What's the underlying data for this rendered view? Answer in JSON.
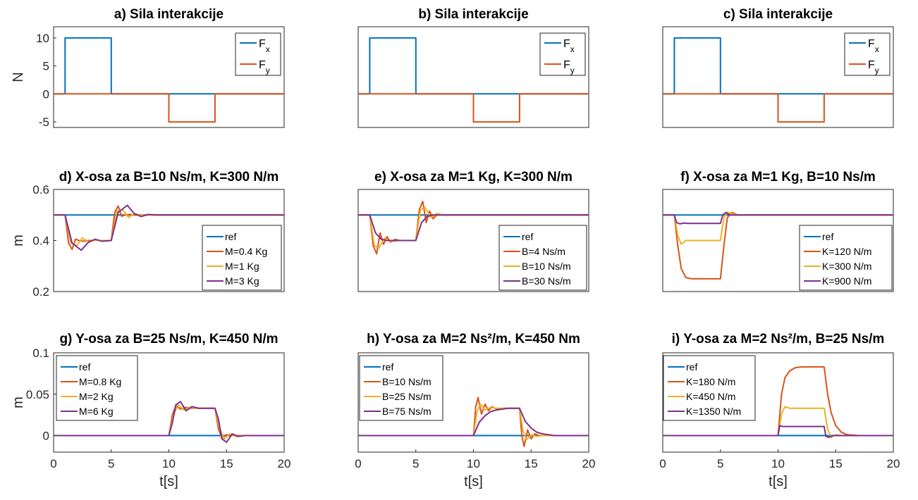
{
  "figure": {
    "xlabel": "t[s]",
    "colors": {
      "ref": "#0072BD",
      "s1": "#D95319",
      "s2": "#EDB120",
      "s3": "#7E2F8E",
      "axis": "#262626"
    }
  },
  "chart_data": [
    {
      "id": "a",
      "type": "line",
      "title": "a) Sila interakcije",
      "ylabel": "N",
      "xlim": [
        0,
        20
      ],
      "ylim": [
        -6,
        12
      ],
      "yticks": [
        -5,
        0,
        5,
        10
      ],
      "xticks": [],
      "legend_position": "top-right",
      "series": [
        {
          "name": "Fx",
          "color": "#0072BD",
          "x": [
            0,
            1,
            1,
            5,
            5,
            10,
            10,
            14,
            14,
            20
          ],
          "y": [
            0,
            0,
            10,
            10,
            0,
            0,
            0,
            0,
            0,
            0
          ]
        },
        {
          "name": "Fy",
          "color": "#D95319",
          "x": [
            0,
            10,
            10,
            14,
            14,
            20
          ],
          "y": [
            0,
            0,
            -5,
            -5,
            0,
            0
          ]
        }
      ]
    },
    {
      "id": "b",
      "type": "line",
      "title": "b) Sila interakcije",
      "ylabel": "",
      "xlim": [
        0,
        20
      ],
      "ylim": [
        -6,
        12
      ],
      "yticks": [],
      "xticks": [],
      "legend_position": "top-right",
      "series": [
        {
          "name": "Fx",
          "color": "#0072BD",
          "x": [
            0,
            1,
            1,
            5,
            5,
            10,
            10,
            14,
            14,
            20
          ],
          "y": [
            0,
            0,
            10,
            10,
            0,
            0,
            0,
            0,
            0,
            0
          ]
        },
        {
          "name": "Fy",
          "color": "#D95319",
          "x": [
            0,
            10,
            10,
            14,
            14,
            20
          ],
          "y": [
            0,
            0,
            -5,
            -5,
            0,
            0
          ]
        }
      ]
    },
    {
      "id": "c",
      "type": "line",
      "title": "c) Sila interakcije",
      "ylabel": "",
      "xlim": [
        0,
        20
      ],
      "ylim": [
        -6,
        12
      ],
      "yticks": [],
      "xticks": [],
      "legend_position": "top-right",
      "series": [
        {
          "name": "Fx",
          "color": "#0072BD",
          "x": [
            0,
            1,
            1,
            5,
            5,
            10,
            10,
            14,
            14,
            20
          ],
          "y": [
            0,
            0,
            10,
            10,
            0,
            0,
            0,
            0,
            0,
            0
          ]
        },
        {
          "name": "Fy",
          "color": "#D95319",
          "x": [
            0,
            10,
            10,
            14,
            14,
            20
          ],
          "y": [
            0,
            0,
            -5,
            -5,
            0,
            0
          ]
        }
      ]
    },
    {
      "id": "d",
      "type": "line",
      "title": "d) X-osa za B=10 Ns/m, K=300 N/m",
      "ylabel": "m",
      "xlim": [
        0,
        20
      ],
      "ylim": [
        0.2,
        0.6
      ],
      "yticks": [
        0.2,
        0.4,
        0.6
      ],
      "xticks": [],
      "legend_position": "bottom-right",
      "series": [
        {
          "name": "ref",
          "color": "#0072BD",
          "x": [
            0,
            20
          ],
          "y": [
            0.5,
            0.5
          ]
        },
        {
          "name": "M=0.4 Kg",
          "color": "#D95319",
          "x": [
            0,
            1,
            1.3,
            1.6,
            1.9,
            2.2,
            2.6,
            3,
            5,
            5.3,
            5.6,
            5.9,
            6.2,
            6.6,
            7,
            20
          ],
          "y": [
            0.5,
            0.5,
            0.39,
            0.365,
            0.405,
            0.4,
            0.397,
            0.4,
            0.4,
            0.51,
            0.535,
            0.495,
            0.5,
            0.502,
            0.5,
            0.5
          ]
        },
        {
          "name": "M=1 Kg",
          "color": "#EDB120",
          "x": [
            0,
            1,
            1.5,
            2,
            2.5,
            3,
            3.5,
            5,
            5.5,
            6,
            6.5,
            7,
            7.5,
            20
          ],
          "y": [
            0.5,
            0.5,
            0.39,
            0.38,
            0.41,
            0.395,
            0.4,
            0.4,
            0.515,
            0.52,
            0.49,
            0.505,
            0.5,
            0.5
          ]
        },
        {
          "name": "M=3 Kg",
          "color": "#7E2F8E",
          "x": [
            0,
            1,
            1.6,
            2.4,
            3,
            3.6,
            4.2,
            5,
            5.6,
            6.4,
            7,
            7.6,
            8.2,
            9,
            20
          ],
          "y": [
            0.5,
            0.5,
            0.39,
            0.362,
            0.392,
            0.405,
            0.397,
            0.4,
            0.51,
            0.538,
            0.505,
            0.494,
            0.502,
            0.5,
            0.5
          ]
        }
      ]
    },
    {
      "id": "e",
      "type": "line",
      "title": "e) X-osa za M=1 Kg, K=300 N/m",
      "ylabel": "",
      "xlim": [
        0,
        20
      ],
      "ylim": [
        0.2,
        0.6
      ],
      "yticks": [],
      "xticks": [],
      "legend_position": "bottom-right",
      "series": [
        {
          "name": "ref",
          "color": "#0072BD",
          "x": [
            0,
            20
          ],
          "y": [
            0.5,
            0.5
          ]
        },
        {
          "name": "B=4 Ns/m",
          "color": "#D95319",
          "x": [
            0,
            1,
            1.3,
            1.6,
            1.9,
            2.2,
            2.5,
            2.8,
            3.2,
            3.6,
            5,
            5.3,
            5.6,
            5.9,
            6.2,
            6.5,
            6.9,
            7.3,
            20
          ],
          "y": [
            0.5,
            0.5,
            0.38,
            0.348,
            0.43,
            0.385,
            0.415,
            0.393,
            0.404,
            0.4,
            0.4,
            0.52,
            0.553,
            0.47,
            0.515,
            0.485,
            0.505,
            0.5,
            0.5
          ]
        },
        {
          "name": "B=10 Ns/m",
          "color": "#EDB120",
          "x": [
            0,
            1,
            1.4,
            1.8,
            2.3,
            2.8,
            3.4,
            5,
            5.4,
            5.8,
            6.3,
            6.8,
            7.4,
            20
          ],
          "y": [
            0.5,
            0.5,
            0.38,
            0.37,
            0.41,
            0.395,
            0.4,
            0.4,
            0.52,
            0.53,
            0.49,
            0.505,
            0.5,
            0.5
          ]
        },
        {
          "name": "B=30 Ns/m",
          "color": "#7E2F8E",
          "x": [
            0,
            1,
            1.5,
            2,
            2.5,
            3,
            5,
            5.5,
            6,
            6.5,
            7,
            20
          ],
          "y": [
            0.5,
            0.5,
            0.43,
            0.405,
            0.4,
            0.4,
            0.4,
            0.47,
            0.495,
            0.5,
            0.5,
            0.5
          ]
        }
      ]
    },
    {
      "id": "f",
      "type": "line",
      "title": "f) X-osa za M=1 Kg, B=10 Ns/m",
      "ylabel": "",
      "xlim": [
        0,
        20
      ],
      "ylim": [
        0.2,
        0.6
      ],
      "yticks": [],
      "xticks": [],
      "legend_position": "bottom-right",
      "series": [
        {
          "name": "ref",
          "color": "#0072BD",
          "x": [
            0,
            20
          ],
          "y": [
            0.5,
            0.5
          ]
        },
        {
          "name": "K=120 N/m",
          "color": "#D95319",
          "x": [
            0,
            1,
            1.3,
            1.6,
            2,
            2.5,
            3,
            5,
            5.3,
            5.6,
            6,
            6.5,
            20
          ],
          "y": [
            0.5,
            0.5,
            0.38,
            0.29,
            0.255,
            0.25,
            0.25,
            0.25,
            0.38,
            0.49,
            0.51,
            0.5,
            0.5
          ]
        },
        {
          "name": "K=300 N/m",
          "color": "#EDB120",
          "x": [
            0,
            1,
            1.3,
            1.6,
            2,
            2.5,
            5,
            5.3,
            5.6,
            6,
            6.5,
            20
          ],
          "y": [
            0.5,
            0.5,
            0.42,
            0.385,
            0.4,
            0.4,
            0.4,
            0.49,
            0.51,
            0.505,
            0.5,
            0.5
          ]
        },
        {
          "name": "K=900 N/m",
          "color": "#7E2F8E",
          "x": [
            0,
            1,
            1.2,
            1.5,
            1.8,
            2.2,
            5,
            5.2,
            5.5,
            5.8,
            6.2,
            20
          ],
          "y": [
            0.5,
            0.5,
            0.47,
            0.465,
            0.468,
            0.467,
            0.467,
            0.5,
            0.51,
            0.5,
            0.5,
            0.5
          ]
        }
      ]
    },
    {
      "id": "g",
      "type": "line",
      "title": "g) Y-osa za B=25 Ns/m, K=450 N/m",
      "ylabel": "m",
      "xlim": [
        0,
        20
      ],
      "ylim": [
        -0.02,
        0.1
      ],
      "yticks": [
        0,
        0.05,
        0.1
      ],
      "xticks": [
        0,
        5,
        10,
        15,
        20
      ],
      "legend_position": "top-left",
      "series": [
        {
          "name": "ref",
          "color": "#0072BD",
          "x": [
            0,
            20
          ],
          "y": [
            0,
            0
          ]
        },
        {
          "name": "M=0.8 Kg",
          "color": "#D95319",
          "x": [
            0,
            10,
            10.3,
            10.6,
            11,
            11.5,
            12,
            14,
            14.3,
            14.6,
            15,
            15.5,
            20
          ],
          "y": [
            0,
            0,
            0.025,
            0.036,
            0.032,
            0.034,
            0.033,
            0.033,
            0.008,
            -0.003,
            0.001,
            0,
            0
          ]
        },
        {
          "name": "M=2 Kg",
          "color": "#EDB120",
          "x": [
            0,
            10,
            10.4,
            10.8,
            11.3,
            11.8,
            12.4,
            14,
            14.4,
            14.8,
            15.3,
            15.8,
            16.4,
            20
          ],
          "y": [
            0,
            0,
            0.025,
            0.037,
            0.031,
            0.034,
            0.033,
            0.033,
            0.008,
            -0.004,
            0.002,
            -0.001,
            0,
            0
          ]
        },
        {
          "name": "M=6 Kg",
          "color": "#7E2F8E",
          "x": [
            0,
            10,
            10.3,
            10.6,
            11,
            11.5,
            12,
            12.6,
            14,
            14.3,
            14.6,
            15,
            15.5,
            16,
            16.6,
            20
          ],
          "y": [
            0,
            0,
            0.015,
            0.037,
            0.041,
            0.03,
            0.035,
            0.033,
            0.033,
            0.02,
            -0.004,
            -0.008,
            0.002,
            -0.001,
            0,
            0
          ]
        }
      ]
    },
    {
      "id": "h",
      "type": "line",
      "title": "h) Y-osa za M=2 Ns²/m, K=450 Nm",
      "ylabel": "",
      "xlim": [
        0,
        20
      ],
      "ylim": [
        -0.02,
        0.1
      ],
      "yticks": [],
      "xticks": [
        0,
        5,
        10,
        15,
        20
      ],
      "legend_position": "top-left",
      "series": [
        {
          "name": "ref",
          "color": "#0072BD",
          "x": [
            0,
            20
          ],
          "y": [
            0,
            0
          ]
        },
        {
          "name": "B=10 Ns/m",
          "color": "#D95319",
          "x": [
            0,
            10,
            10.2,
            10.4,
            10.7,
            11,
            11.3,
            11.6,
            12,
            12.5,
            14,
            14.2,
            14.4,
            14.7,
            15,
            15.3,
            15.7,
            16.2,
            20
          ],
          "y": [
            0,
            0,
            0.035,
            0.046,
            0.026,
            0.038,
            0.03,
            0.035,
            0.032,
            0.033,
            0.033,
            -0.001,
            -0.013,
            0.007,
            -0.004,
            0.002,
            0,
            0,
            0
          ]
        },
        {
          "name": "B=25 Ns/m",
          "color": "#EDB120",
          "x": [
            0,
            10,
            10.3,
            10.6,
            11,
            11.5,
            12,
            14,
            14.3,
            14.6,
            15,
            15.5,
            16,
            20
          ],
          "y": [
            0,
            0,
            0.028,
            0.038,
            0.031,
            0.034,
            0.033,
            0.033,
            0.006,
            -0.005,
            0.001,
            -0.001,
            0,
            0
          ]
        },
        {
          "name": "B=75 Ns/m",
          "color": "#7E2F8E",
          "x": [
            0,
            10,
            10.5,
            11,
            11.5,
            12,
            13,
            14,
            14.5,
            15,
            15.5,
            16,
            17,
            20
          ],
          "y": [
            0,
            0,
            0.016,
            0.024,
            0.029,
            0.031,
            0.033,
            0.033,
            0.017,
            0.009,
            0.004,
            0.002,
            0,
            0
          ]
        }
      ]
    },
    {
      "id": "i",
      "type": "line",
      "title": "i) Y-osa za M=2 Ns²/m, B=25 Ns/m",
      "ylabel": "",
      "xlim": [
        0,
        20
      ],
      "ylim": [
        -0.02,
        0.1
      ],
      "yticks": [],
      "xticks": [
        0,
        5,
        10,
        15,
        20
      ],
      "legend_position": "top-left",
      "series": [
        {
          "name": "ref",
          "color": "#0072BD",
          "x": [
            0,
            20
          ],
          "y": [
            0,
            0
          ]
        },
        {
          "name": "K=180 N/m",
          "color": "#D95319",
          "x": [
            0,
            10,
            10.3,
            10.6,
            11,
            11.5,
            12,
            12.5,
            13,
            14,
            14.3,
            14.6,
            15,
            15.5,
            16,
            17,
            20
          ],
          "y": [
            0,
            0,
            0.05,
            0.07,
            0.078,
            0.082,
            0.083,
            0.083,
            0.083,
            0.083,
            0.05,
            0.028,
            0.012,
            0.004,
            0.001,
            0,
            0
          ]
        },
        {
          "name": "K=450 N/m",
          "color": "#EDB120",
          "x": [
            0,
            10,
            10.3,
            10.6,
            11,
            11.5,
            14,
            14.3,
            14.6,
            15,
            15.5,
            20
          ],
          "y": [
            0,
            0,
            0.026,
            0.035,
            0.033,
            0.033,
            0.033,
            0.008,
            -0.002,
            0.001,
            0,
            0
          ]
        },
        {
          "name": "K=1350 N/m",
          "color": "#7E2F8E",
          "x": [
            0,
            10,
            10.15,
            10.4,
            10.8,
            14,
            14.15,
            14.4,
            14.8,
            20
          ],
          "y": [
            0,
            0,
            0.012,
            0.011,
            0.011,
            0.011,
            -0.001,
            -0.002,
            0,
            0
          ]
        }
      ]
    }
  ]
}
